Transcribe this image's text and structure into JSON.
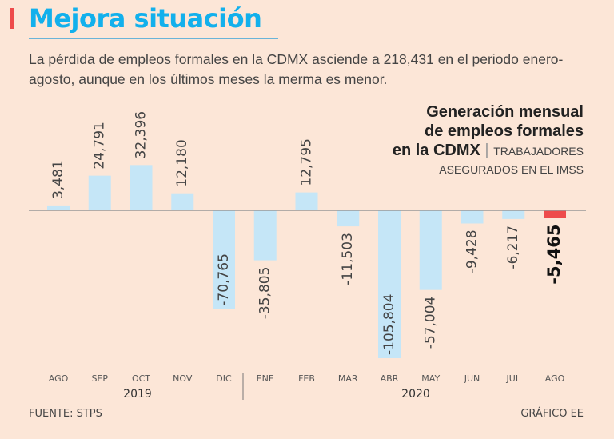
{
  "header": {
    "title": "Mejora situación",
    "subtitle": "La pérdida de empleos formales en la CDMX asciende a 218,431 en el periodo enero-agosto, aunque en los últimos meses la merma es menor."
  },
  "chart_data": {
    "type": "bar",
    "title_line1": "Generación mensual",
    "title_line2": "de empleos formales",
    "title_line3": "en la CDMX",
    "title_note": "TRABAJADORES",
    "subtitle": "ASEGURADOS EN EL IMSS",
    "categories": [
      "AGO",
      "SEP",
      "OCT",
      "NOV",
      "DIC",
      "ENE",
      "FEB",
      "MAR",
      "ABR",
      "MAY",
      "JUN",
      "JUL",
      "AGO"
    ],
    "values": [
      3481,
      24791,
      32396,
      12180,
      -70765,
      -35805,
      12795,
      -11503,
      -105804,
      -57004,
      -9428,
      -6217,
      -5465
    ],
    "value_labels": [
      "3,481",
      "24,791",
      "32,396",
      "12,180",
      "-70,765",
      "-35,805",
      "12,795",
      "-11,503",
      "-105,804",
      "-57,004",
      "-9,428",
      "-6,217",
      "-5,465"
    ],
    "years": [
      "2019",
      "2020"
    ],
    "colors": {
      "bar": "#c5e6f7",
      "highlight": "#ee4b4b"
    },
    "highlight_index": 12
  },
  "footer": {
    "source": "FUENTE: STPS",
    "credit": "GRÁFICO EE"
  }
}
